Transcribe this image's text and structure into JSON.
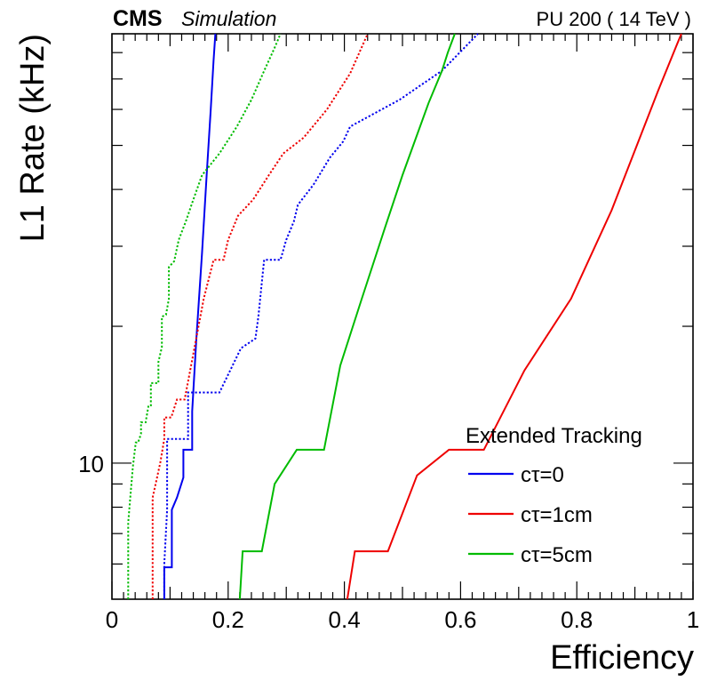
{
  "header": {
    "experiment": "CMS",
    "sublabel": "Simulation",
    "conditions": "PU 200 ( 14 TeV )"
  },
  "chart_data": {
    "type": "line",
    "xlabel": "Efficiency",
    "ylabel": "L1 Rate (kHz)",
    "xlim": [
      0,
      1
    ],
    "ylim": [
      5.02,
      88
    ],
    "yscale": "log",
    "xticks": [
      0,
      0.2,
      0.4,
      0.6,
      0.8,
      1
    ],
    "xtick_labels": [
      "0",
      "0.2",
      "0.4",
      "0.6",
      "0.8",
      "1"
    ],
    "yticks_labeled": [
      10
    ],
    "ytick_labels": [
      "10"
    ],
    "legend": {
      "title": "Extended Tracking",
      "position": "bottom-right",
      "entries": [
        "cτ=0",
        "cτ=1cm",
        "cτ=5cm"
      ]
    },
    "series": [
      {
        "name": "cτ=0",
        "color": "#0000ee",
        "style": "solid",
        "points": [
          [
            0.09,
            5.02
          ],
          [
            0.09,
            5.9
          ],
          [
            0.103,
            5.9
          ],
          [
            0.103,
            7.9
          ],
          [
            0.112,
            8.4
          ],
          [
            0.123,
            9.3
          ],
          [
            0.123,
            10.7
          ],
          [
            0.138,
            10.7
          ],
          [
            0.138,
            13.0
          ],
          [
            0.145,
            18.5
          ],
          [
            0.155,
            29.0
          ],
          [
            0.163,
            43.0
          ],
          [
            0.17,
            60.0
          ],
          [
            0.175,
            77.0
          ],
          [
            0.178,
            88.0
          ]
        ]
      },
      {
        "name": "cτ=0",
        "color": "#0000ee",
        "style": "dotted",
        "points": [
          [
            0.09,
            5.02
          ],
          [
            0.09,
            6.0
          ],
          [
            0.095,
            7.9
          ],
          [
            0.095,
            11.3
          ],
          [
            0.131,
            11.3
          ],
          [
            0.131,
            14.3
          ],
          [
            0.185,
            14.3
          ],
          [
            0.222,
            17.9
          ],
          [
            0.247,
            18.8
          ],
          [
            0.252,
            21.0
          ],
          [
            0.258,
            25.0
          ],
          [
            0.262,
            28.0
          ],
          [
            0.29,
            28.0
          ],
          [
            0.3,
            31.0
          ],
          [
            0.313,
            34.0
          ],
          [
            0.32,
            37.0
          ],
          [
            0.347,
            41.0
          ],
          [
            0.375,
            47.0
          ],
          [
            0.398,
            51.0
          ],
          [
            0.41,
            55.0
          ],
          [
            0.495,
            63.0
          ],
          [
            0.568,
            73.0
          ],
          [
            0.63,
            88.0
          ]
        ]
      },
      {
        "name": "cτ=1cm",
        "color": "#ee0000",
        "style": "solid",
        "points": [
          [
            0.405,
            5.02
          ],
          [
            0.418,
            6.4
          ],
          [
            0.475,
            6.4
          ],
          [
            0.525,
            9.4
          ],
          [
            0.58,
            10.7
          ],
          [
            0.64,
            10.7
          ],
          [
            0.71,
            16.0
          ],
          [
            0.79,
            23.0
          ],
          [
            0.86,
            36.0
          ],
          [
            0.94,
            66.0
          ],
          [
            0.97,
            82.0
          ],
          [
            0.98,
            88.0
          ]
        ]
      },
      {
        "name": "cτ=1cm",
        "color": "#ee0000",
        "style": "dotted",
        "points": [
          [
            0.07,
            5.02
          ],
          [
            0.07,
            8.4
          ],
          [
            0.083,
            10.0
          ],
          [
            0.09,
            11.3
          ],
          [
            0.09,
            12.6
          ],
          [
            0.102,
            12.6
          ],
          [
            0.112,
            13.8
          ],
          [
            0.125,
            13.8
          ],
          [
            0.14,
            17.4
          ],
          [
            0.158,
            23.0
          ],
          [
            0.175,
            28.0
          ],
          [
            0.192,
            28.0
          ],
          [
            0.2,
            31.0
          ],
          [
            0.217,
            35.0
          ],
          [
            0.243,
            38.0
          ],
          [
            0.27,
            43.0
          ],
          [
            0.295,
            48.0
          ],
          [
            0.33,
            52.0
          ],
          [
            0.37,
            60.0
          ],
          [
            0.41,
            72.0
          ],
          [
            0.44,
            88.0
          ]
        ]
      },
      {
        "name": "cτ=5cm",
        "color": "#00bb00",
        "style": "solid",
        "points": [
          [
            0.22,
            5.02
          ],
          [
            0.225,
            6.4
          ],
          [
            0.258,
            6.4
          ],
          [
            0.28,
            9.0
          ],
          [
            0.318,
            10.7
          ],
          [
            0.365,
            10.7
          ],
          [
            0.393,
            16.4
          ],
          [
            0.43,
            23.0
          ],
          [
            0.47,
            33.0
          ],
          [
            0.5,
            43.0
          ],
          [
            0.545,
            62.0
          ],
          [
            0.568,
            73.0
          ],
          [
            0.578,
            80.0
          ],
          [
            0.59,
            88.0
          ]
        ]
      },
      {
        "name": "cτ=5cm",
        "color": "#00bb00",
        "style": "dotted",
        "points": [
          [
            0.028,
            5.02
          ],
          [
            0.028,
            7.4
          ],
          [
            0.036,
            9.8
          ],
          [
            0.041,
            11.1
          ],
          [
            0.045,
            11.1
          ],
          [
            0.05,
            11.6
          ],
          [
            0.05,
            12.3
          ],
          [
            0.058,
            12.3
          ],
          [
            0.063,
            13.4
          ],
          [
            0.067,
            13.4
          ],
          [
            0.067,
            15.0
          ],
          [
            0.08,
            15.0
          ],
          [
            0.08,
            16.7
          ],
          [
            0.086,
            18.0
          ],
          [
            0.086,
            21.0
          ],
          [
            0.093,
            21.2
          ],
          [
            0.098,
            23.0
          ],
          [
            0.098,
            27.0
          ],
          [
            0.107,
            27.8
          ],
          [
            0.115,
            31.0
          ],
          [
            0.127,
            34.0
          ],
          [
            0.14,
            38.0
          ],
          [
            0.155,
            43.0
          ],
          [
            0.185,
            48.0
          ],
          [
            0.215,
            55.0
          ],
          [
            0.24,
            63.0
          ],
          [
            0.26,
            72.0
          ],
          [
            0.28,
            82.0
          ],
          [
            0.29,
            88.0
          ]
        ]
      }
    ]
  }
}
